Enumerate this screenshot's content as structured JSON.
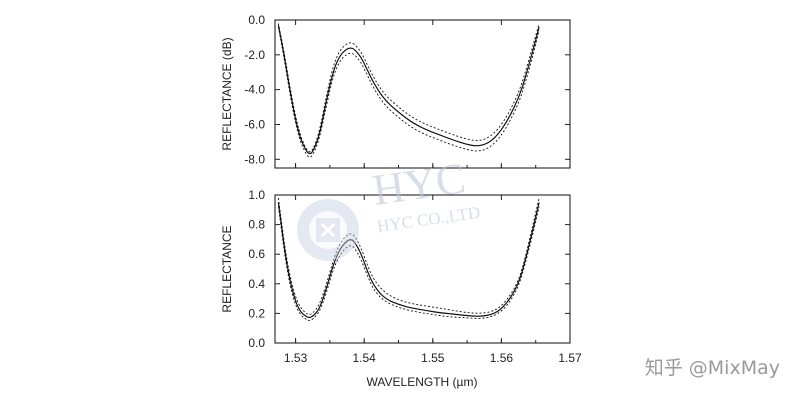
{
  "chart_data": [
    {
      "type": "line",
      "ylabel": "REFLECTANCE (dB)",
      "xlabel": "",
      "xlim": [
        1.527,
        1.57
      ],
      "ylim": [
        -8.5,
        0.0
      ],
      "yticks": [
        0.0,
        -2.0,
        -4.0,
        -6.0,
        -8.0
      ],
      "ytick_labels": [
        "0.0",
        "-2.0",
        "-4.0",
        "-6.0",
        "-8.0"
      ],
      "xticks": [
        1.53,
        1.54,
        1.55,
        1.56,
        1.57
      ],
      "xtick_labels": [],
      "grid": false,
      "series": [
        {
          "style": "dotted",
          "x": [
            1.5275,
            1.5285,
            1.5295,
            1.5305,
            1.5315,
            1.532,
            1.5325,
            1.5335,
            1.5345,
            1.5355,
            1.5365,
            1.5375,
            1.538,
            1.5385,
            1.5395,
            1.5405,
            1.5415,
            1.543,
            1.545,
            1.547,
            1.549,
            1.551,
            1.553,
            1.555,
            1.5565,
            1.558,
            1.5595,
            1.561,
            1.5625,
            1.5635,
            1.5645,
            1.5655
          ],
          "values": [
            -0.2,
            -2.2,
            -4.6,
            -6.4,
            -7.4,
            -7.6,
            -7.5,
            -6.4,
            -4.3,
            -2.6,
            -1.7,
            -1.35,
            -1.3,
            -1.35,
            -1.8,
            -2.6,
            -3.4,
            -4.3,
            -5.0,
            -5.6,
            -6.0,
            -6.3,
            -6.6,
            -6.85,
            -6.95,
            -6.8,
            -6.3,
            -5.4,
            -4.2,
            -3.0,
            -1.6,
            -0.2
          ]
        },
        {
          "style": "solid",
          "x": [
            1.5275,
            1.5285,
            1.5295,
            1.5305,
            1.5315,
            1.532,
            1.5325,
            1.5335,
            1.5345,
            1.5355,
            1.5365,
            1.5375,
            1.538,
            1.5385,
            1.5395,
            1.5405,
            1.5415,
            1.543,
            1.545,
            1.547,
            1.549,
            1.551,
            1.553,
            1.555,
            1.5565,
            1.558,
            1.5595,
            1.561,
            1.5625,
            1.5635,
            1.5645,
            1.5655
          ],
          "values": [
            -0.3,
            -2.4,
            -4.8,
            -6.6,
            -7.5,
            -7.7,
            -7.6,
            -6.6,
            -4.6,
            -2.9,
            -2.0,
            -1.65,
            -1.6,
            -1.65,
            -2.1,
            -2.9,
            -3.7,
            -4.6,
            -5.3,
            -5.9,
            -6.3,
            -6.6,
            -6.9,
            -7.15,
            -7.25,
            -7.1,
            -6.6,
            -5.7,
            -4.5,
            -3.3,
            -1.9,
            -0.4
          ]
        },
        {
          "style": "dotted",
          "x": [
            1.5275,
            1.5285,
            1.5295,
            1.5305,
            1.5315,
            1.532,
            1.5325,
            1.5335,
            1.5345,
            1.5355,
            1.5365,
            1.5375,
            1.538,
            1.5385,
            1.5395,
            1.5405,
            1.5415,
            1.543,
            1.545,
            1.547,
            1.549,
            1.551,
            1.553,
            1.555,
            1.5565,
            1.558,
            1.5595,
            1.561,
            1.5625,
            1.5635,
            1.5645,
            1.5655
          ],
          "values": [
            -0.4,
            -2.6,
            -5.0,
            -6.8,
            -7.7,
            -7.9,
            -7.8,
            -6.8,
            -4.9,
            -3.2,
            -2.3,
            -1.95,
            -1.9,
            -1.95,
            -2.4,
            -3.2,
            -4.0,
            -4.9,
            -5.6,
            -6.2,
            -6.6,
            -6.9,
            -7.2,
            -7.45,
            -7.55,
            -7.4,
            -6.9,
            -6.0,
            -4.8,
            -3.6,
            -2.2,
            -0.6
          ]
        }
      ]
    },
    {
      "type": "line",
      "ylabel": "REFLECTANCE",
      "xlabel": "WAVELENGTH (µm)",
      "xlim": [
        1.527,
        1.57
      ],
      "ylim": [
        0.0,
        1.0
      ],
      "yticks": [
        0.0,
        0.2,
        0.4,
        0.6,
        0.8,
        1.0
      ],
      "ytick_labels": [
        "0.0",
        "0.2",
        "0.4",
        "0.6",
        "0.8",
        "1.0"
      ],
      "xticks": [
        1.53,
        1.54,
        1.55,
        1.56,
        1.57
      ],
      "xtick_labels": [
        "1.53",
        "1.54",
        "1.55",
        "1.56",
        "1.57"
      ],
      "grid": false,
      "series": [
        {
          "style": "dotted",
          "x": [
            1.5275,
            1.5285,
            1.5295,
            1.5305,
            1.5315,
            1.532,
            1.5325,
            1.5335,
            1.5345,
            1.5355,
            1.5365,
            1.5375,
            1.538,
            1.5385,
            1.5395,
            1.5405,
            1.5415,
            1.543,
            1.545,
            1.547,
            1.549,
            1.551,
            1.553,
            1.555,
            1.5565,
            1.558,
            1.5595,
            1.561,
            1.5625,
            1.5635,
            1.5645,
            1.5655
          ],
          "values": [
            0.98,
            0.62,
            0.38,
            0.25,
            0.2,
            0.19,
            0.2,
            0.26,
            0.4,
            0.56,
            0.68,
            0.73,
            0.74,
            0.73,
            0.65,
            0.52,
            0.42,
            0.34,
            0.29,
            0.265,
            0.25,
            0.235,
            0.22,
            0.205,
            0.2,
            0.205,
            0.23,
            0.3,
            0.42,
            0.58,
            0.78,
            0.98
          ]
        },
        {
          "style": "solid",
          "x": [
            1.5275,
            1.5285,
            1.5295,
            1.5305,
            1.5315,
            1.532,
            1.5325,
            1.5335,
            1.5345,
            1.5355,
            1.5365,
            1.5375,
            1.538,
            1.5385,
            1.5395,
            1.5405,
            1.5415,
            1.543,
            1.545,
            1.547,
            1.549,
            1.551,
            1.553,
            1.555,
            1.5565,
            1.558,
            1.5595,
            1.561,
            1.5625,
            1.5635,
            1.5645,
            1.5655
          ],
          "values": [
            0.95,
            0.59,
            0.35,
            0.22,
            0.18,
            0.17,
            0.18,
            0.23,
            0.37,
            0.53,
            0.64,
            0.69,
            0.7,
            0.69,
            0.61,
            0.48,
            0.38,
            0.3,
            0.26,
            0.235,
            0.22,
            0.205,
            0.195,
            0.185,
            0.18,
            0.185,
            0.21,
            0.28,
            0.4,
            0.56,
            0.75,
            0.95
          ]
        },
        {
          "style": "dotted",
          "x": [
            1.5275,
            1.5285,
            1.5295,
            1.5305,
            1.5315,
            1.532,
            1.5325,
            1.5335,
            1.5345,
            1.5355,
            1.5365,
            1.5375,
            1.538,
            1.5385,
            1.5395,
            1.5405,
            1.5415,
            1.543,
            1.545,
            1.547,
            1.549,
            1.551,
            1.553,
            1.555,
            1.5565,
            1.558,
            1.5595,
            1.561,
            1.5625,
            1.5635,
            1.5645,
            1.5655
          ],
          "values": [
            0.92,
            0.56,
            0.32,
            0.2,
            0.16,
            0.15,
            0.16,
            0.21,
            0.34,
            0.5,
            0.6,
            0.65,
            0.66,
            0.65,
            0.57,
            0.45,
            0.35,
            0.28,
            0.24,
            0.215,
            0.2,
            0.185,
            0.175,
            0.17,
            0.165,
            0.17,
            0.195,
            0.26,
            0.38,
            0.54,
            0.72,
            0.92
          ]
        }
      ]
    }
  ],
  "watermark": {
    "title": "HYC",
    "subtitle": "HYC CO.,LTD",
    "logo_icon": "hyc-logo-icon"
  },
  "credit": "知乎 @MixMay"
}
